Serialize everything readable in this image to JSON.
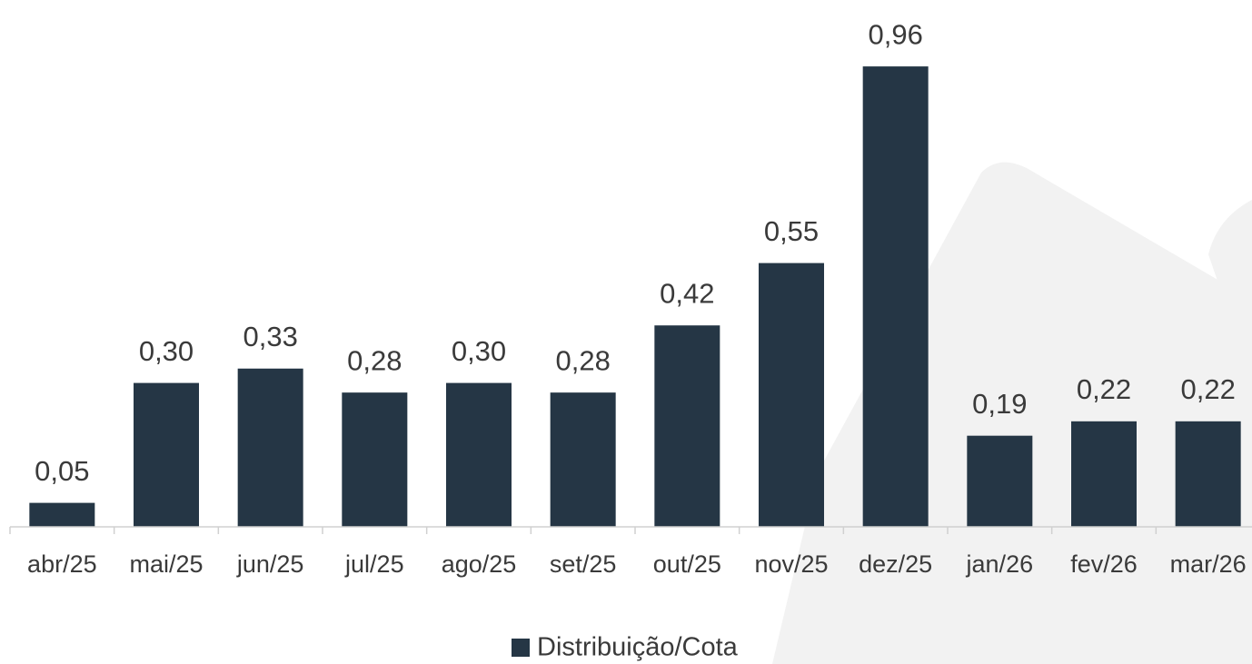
{
  "chart_data": {
    "type": "bar",
    "categories": [
      "abr/25",
      "mai/25",
      "jun/25",
      "jul/25",
      "ago/25",
      "set/25",
      "out/25",
      "nov/25",
      "dez/25",
      "jan/26",
      "fev/26",
      "mar/26"
    ],
    "series": [
      {
        "name": "Distribuição/Cota",
        "color": "#253645",
        "values": [
          0.05,
          0.3,
          0.33,
          0.28,
          0.3,
          0.28,
          0.42,
          0.55,
          0.96,
          0.19,
          0.22,
          0.22
        ],
        "value_labels": [
          "0,05",
          "0,30",
          "0,33",
          "0,28",
          "0,30",
          "0,28",
          "0,42",
          "0,55",
          "0,96",
          "0,19",
          "0,22",
          "0,22"
        ]
      }
    ],
    "ylim": [
      0,
      1
    ],
    "legend": "bottom"
  }
}
